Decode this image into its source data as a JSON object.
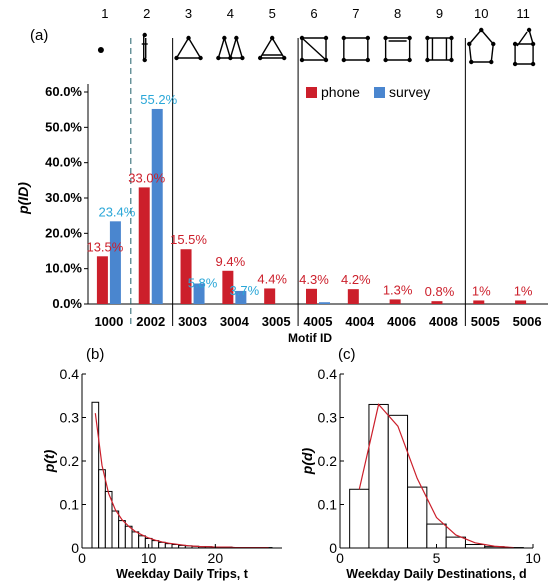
{
  "panels": {
    "a": "(a)",
    "b": "(b)",
    "c": "(c)"
  },
  "motif_numbers": [
    "1",
    "2",
    "3",
    "4",
    "5",
    "6",
    "7",
    "8",
    "9",
    "10",
    "11"
  ],
  "colors": {
    "phone": "#cc1f2b",
    "survey": "#4a86cf",
    "survey_label": "#2aa7d8",
    "fit_line": "#cc1f2b"
  },
  "chart_data": [
    {
      "type": "bar",
      "panel": "(a)",
      "categories": [
        "1000",
        "2002",
        "3003",
        "3004",
        "3005",
        "4005",
        "4004",
        "4006",
        "4008",
        "5005",
        "5006"
      ],
      "series": [
        {
          "name": "phone",
          "values": [
            13.5,
            33.0,
            15.5,
            9.4,
            4.4,
            4.3,
            4.2,
            1.3,
            0.8,
            1.0,
            1.0
          ],
          "labels": [
            "13.5%",
            "33.0%",
            "15.5%",
            "9.4%",
            "4.4%",
            "4.3%",
            "4.2%",
            "1.3%",
            "0.8%",
            "1%",
            "1%"
          ]
        },
        {
          "name": "survey",
          "values": [
            23.4,
            55.2,
            5.8,
            3.7,
            0,
            0.5,
            0,
            0,
            0,
            0,
            0
          ],
          "labels": [
            "23.4%",
            "55.2%",
            "5.8%",
            "3.7%",
            "",
            "",
            "",
            "",
            "",
            "",
            ""
          ]
        }
      ],
      "xlabel": "Motif ID",
      "ylabel": "p(ID)",
      "ylim": [
        0,
        60
      ],
      "yticks": [
        "0.0%",
        "10.0%",
        "20.0%",
        "30.0%",
        "40.0%",
        "50.0%",
        "60.0%"
      ],
      "legend": "top-right"
    },
    {
      "type": "bar",
      "panel": "(b)",
      "x": [
        2,
        3,
        4,
        5,
        6,
        7,
        8,
        9,
        10,
        11,
        12,
        13,
        14,
        15,
        16,
        17,
        18,
        19,
        20,
        21,
        22,
        23,
        24,
        25,
        26,
        27,
        28
      ],
      "values": [
        0.335,
        0.18,
        0.13,
        0.085,
        0.063,
        0.05,
        0.037,
        0.028,
        0.022,
        0.017,
        0.013,
        0.01,
        0.008,
        0.006,
        0.005,
        0.004,
        0.003,
        0.003,
        0.002,
        0.002,
        0.002,
        0.001,
        0.001,
        0.001,
        0.001,
        0.001,
        0.001
      ],
      "fit": [
        0.31,
        0.19,
        0.125,
        0.088,
        0.065,
        0.05,
        0.038,
        0.03,
        0.023,
        0.018,
        0.014,
        0.011,
        0.009,
        0.007,
        0.005,
        0.004,
        0.003,
        0.003,
        0.002,
        0.002,
        0.002,
        0.001,
        0.001,
        0.001,
        0.001,
        0.001,
        0.001
      ],
      "xlabel": "Weekday Daily Trips, t",
      "ylabel": "p(t)",
      "xlim": [
        0,
        30
      ],
      "ylim": [
        0,
        0.4
      ],
      "xticks": [
        "0",
        "10",
        "20"
      ],
      "xtick_values": [
        0,
        10,
        20
      ],
      "yticks": [
        "0",
        "0.1",
        "0.2",
        "0.3",
        "0.4"
      ]
    },
    {
      "type": "bar",
      "panel": "(c)",
      "x": [
        1,
        2,
        3,
        4,
        5,
        6,
        7,
        8,
        9
      ],
      "values": [
        0.135,
        0.33,
        0.305,
        0.14,
        0.055,
        0.025,
        0.008,
        0.003,
        0.001
      ],
      "fit": [
        0.135,
        0.33,
        0.28,
        0.16,
        0.07,
        0.03,
        0.012,
        0.004,
        0.001
      ],
      "xlabel": "Weekday Daily Destinations, d",
      "ylabel": "p(d)",
      "xlim": [
        0,
        10
      ],
      "ylim": [
        0,
        0.4
      ],
      "xticks": [
        "0",
        "5",
        "10"
      ],
      "xtick_values": [
        0,
        5,
        10
      ],
      "yticks": [
        "0",
        "0.1",
        "0.2",
        "0.3",
        "0.4"
      ]
    }
  ]
}
